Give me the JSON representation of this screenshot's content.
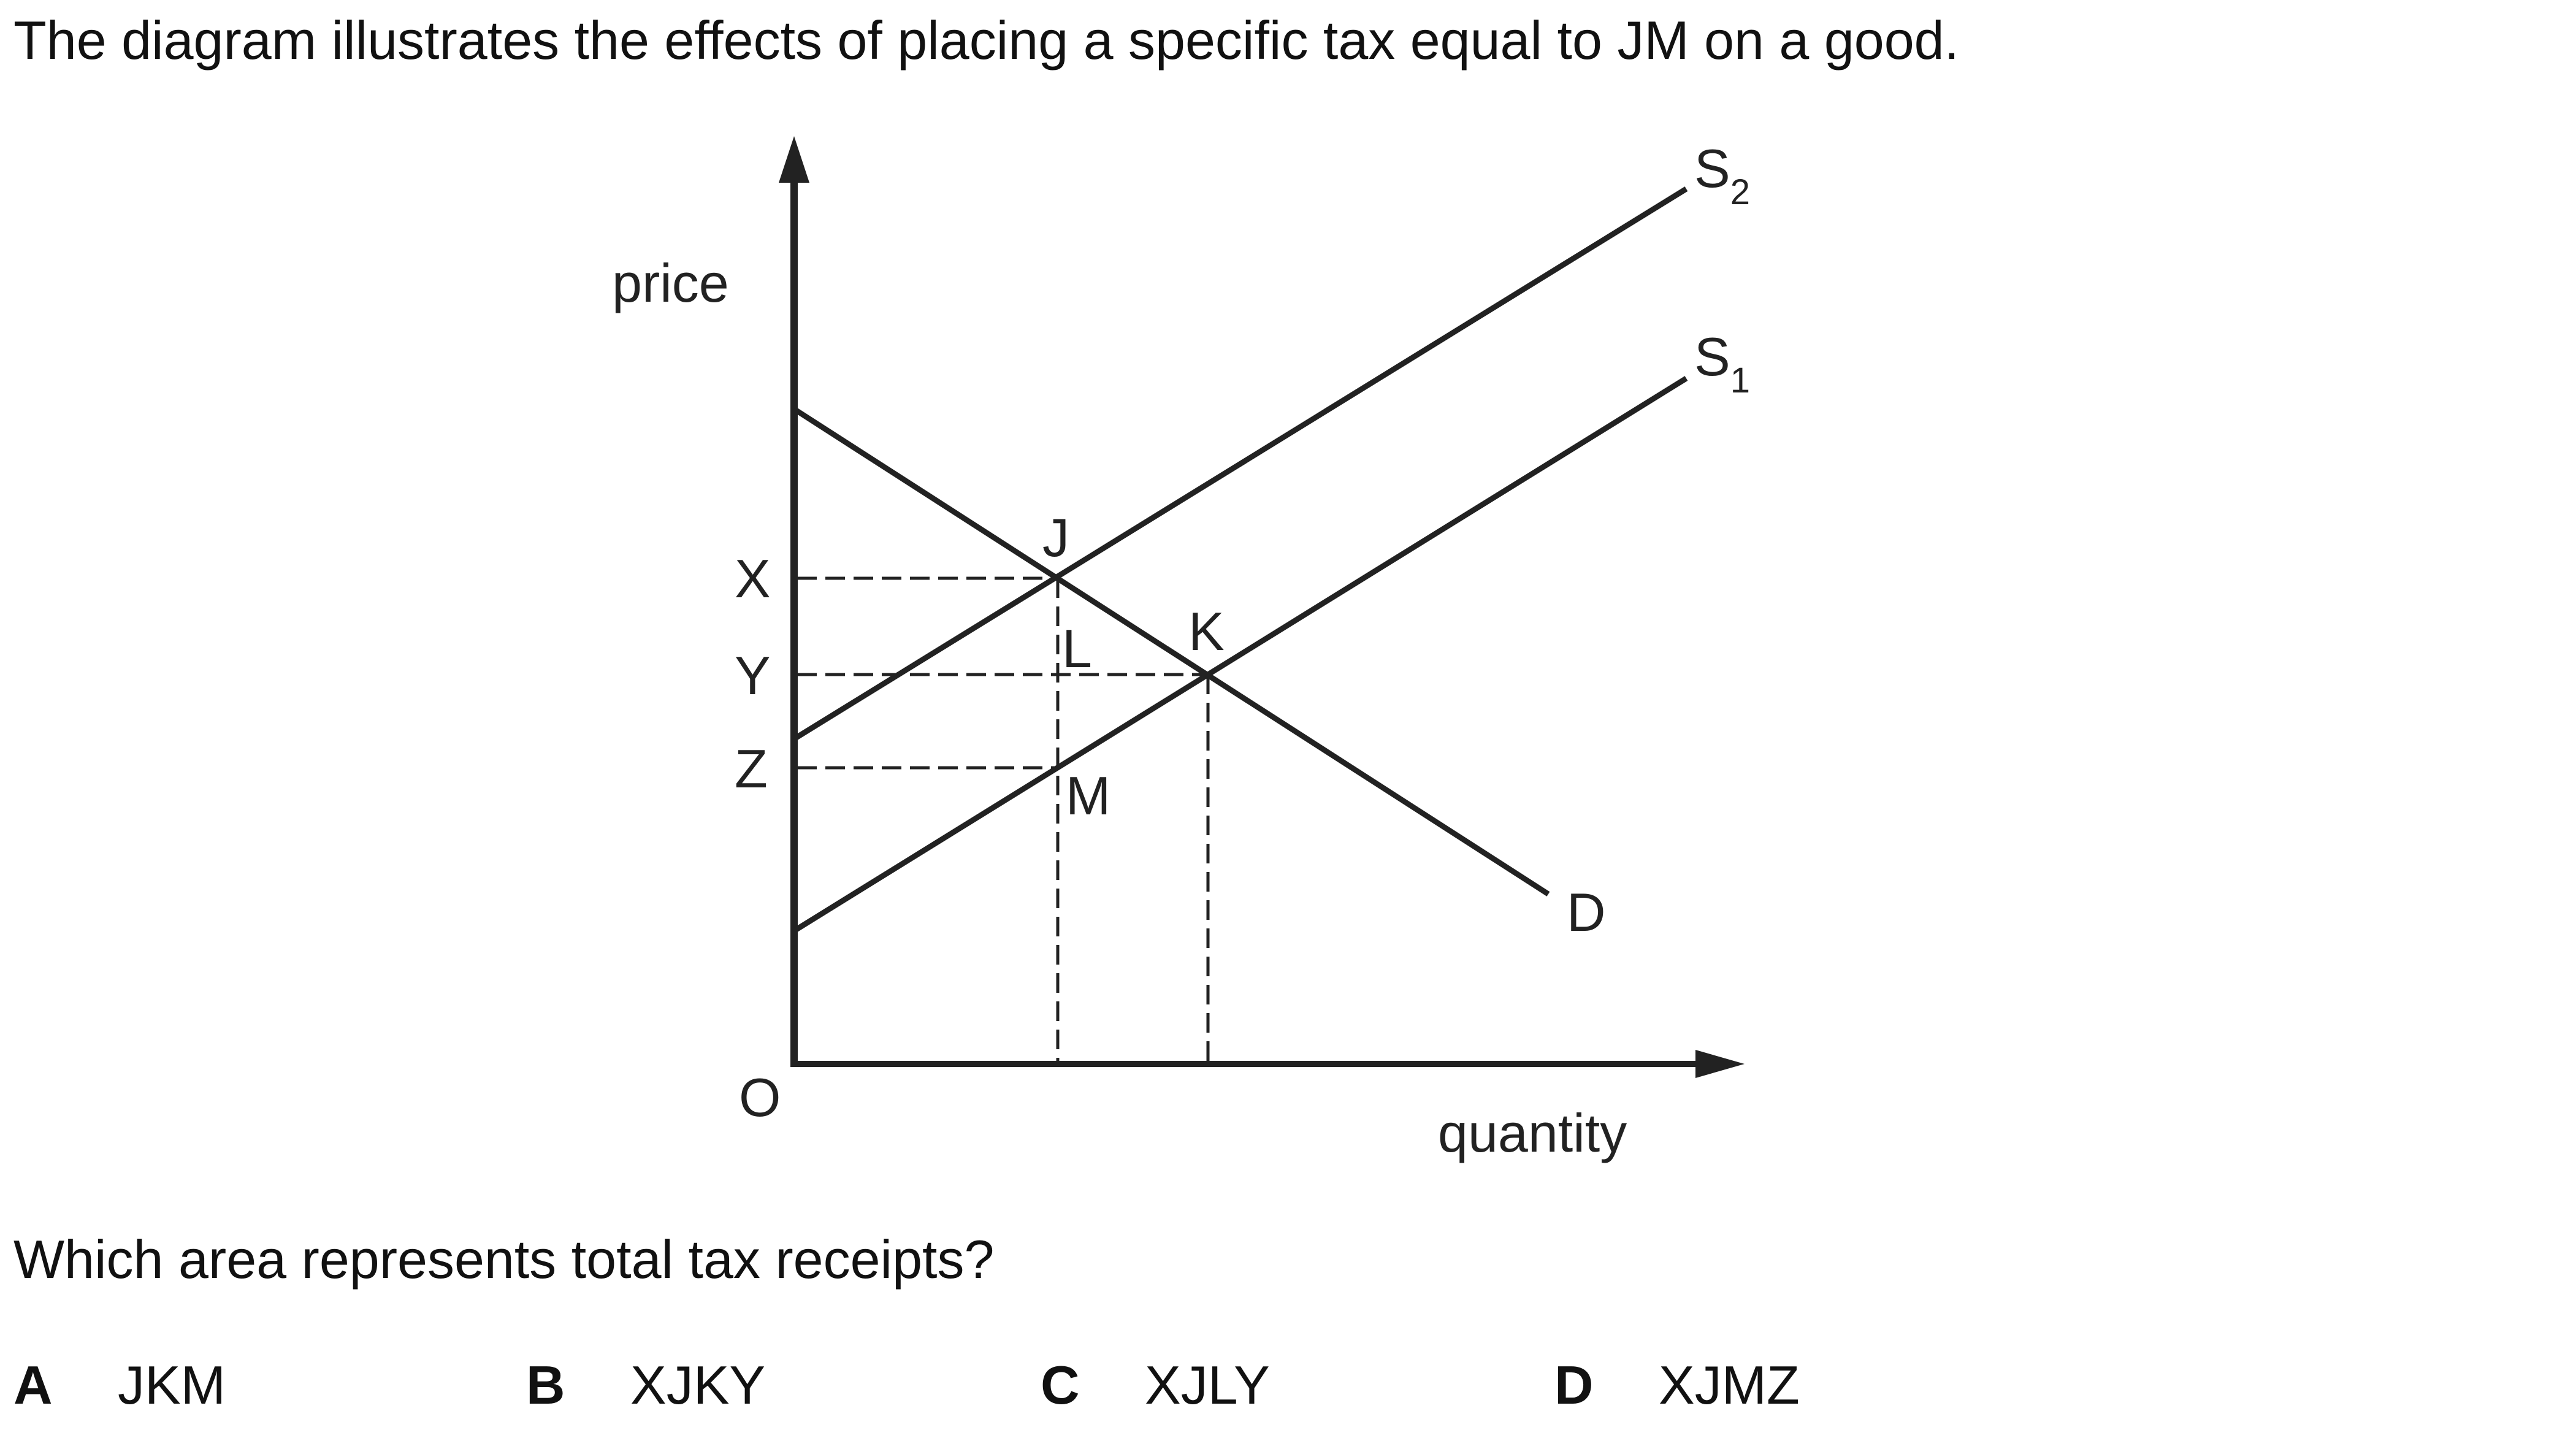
{
  "question_stem": "The diagram illustrates the effects of placing a specific tax equal to JM on a good.",
  "question": "Which area represents total tax receipts?",
  "options": [
    {
      "letter": "A",
      "text": "JKM"
    },
    {
      "letter": "B",
      "text": "XJKY"
    },
    {
      "letter": "C",
      "text": "XJLY"
    },
    {
      "letter": "D",
      "text": "XJMZ"
    }
  ],
  "diagram": {
    "y_axis_label": "price",
    "x_axis_label": "quantity",
    "origin_label": "O",
    "price_labels": [
      "X",
      "Y",
      "Z"
    ],
    "point_labels": [
      "J",
      "K",
      "L",
      "M"
    ],
    "curves": {
      "s2": {
        "letter": "S",
        "subscript": "2"
      },
      "s1": {
        "letter": "S",
        "subscript": "1"
      },
      "d": {
        "letter": "D"
      }
    }
  },
  "colors": {
    "line": "#222222",
    "text": "#111111",
    "background": "#ffffff"
  }
}
